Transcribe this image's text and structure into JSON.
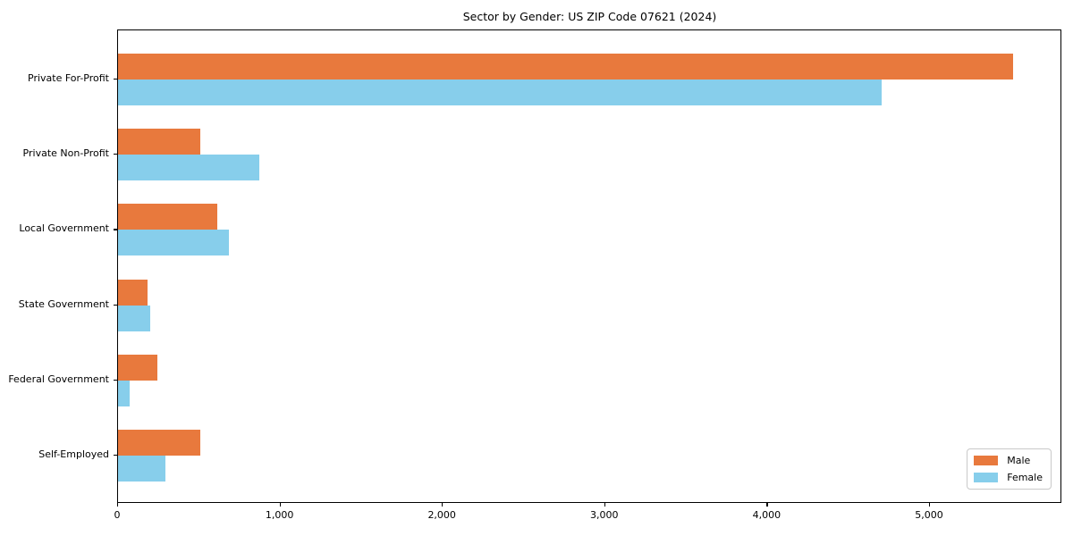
{
  "chart_data": {
    "type": "bar",
    "orientation": "horizontal",
    "title": "Sector by Gender: US ZIP Code 07621 (2024)",
    "categories": [
      "Private For-Profit",
      "Private Non-Profit",
      "Local Government",
      "State Government",
      "Federal Government",
      "Self-Employed"
    ],
    "series": [
      {
        "name": "Male",
        "color": "#E8793D",
        "values": [
          5520,
          510,
          610,
          180,
          245,
          510
        ]
      },
      {
        "name": "Female",
        "color": "#87CEEB",
        "values": [
          4710,
          870,
          685,
          200,
          70,
          290
        ]
      }
    ],
    "xlim": [
      0,
      5815
    ],
    "x_ticks": [
      0,
      1000,
      2000,
      3000,
      4000,
      5000
    ],
    "x_tick_labels": [
      "0",
      "1,000",
      "2,000",
      "3,000",
      "4,000",
      "5,000"
    ],
    "ylabel": "",
    "xlabel": "",
    "grid": false,
    "legend_position": "lower right",
    "background_color": "#ffffff",
    "axis_color": "#000000"
  }
}
